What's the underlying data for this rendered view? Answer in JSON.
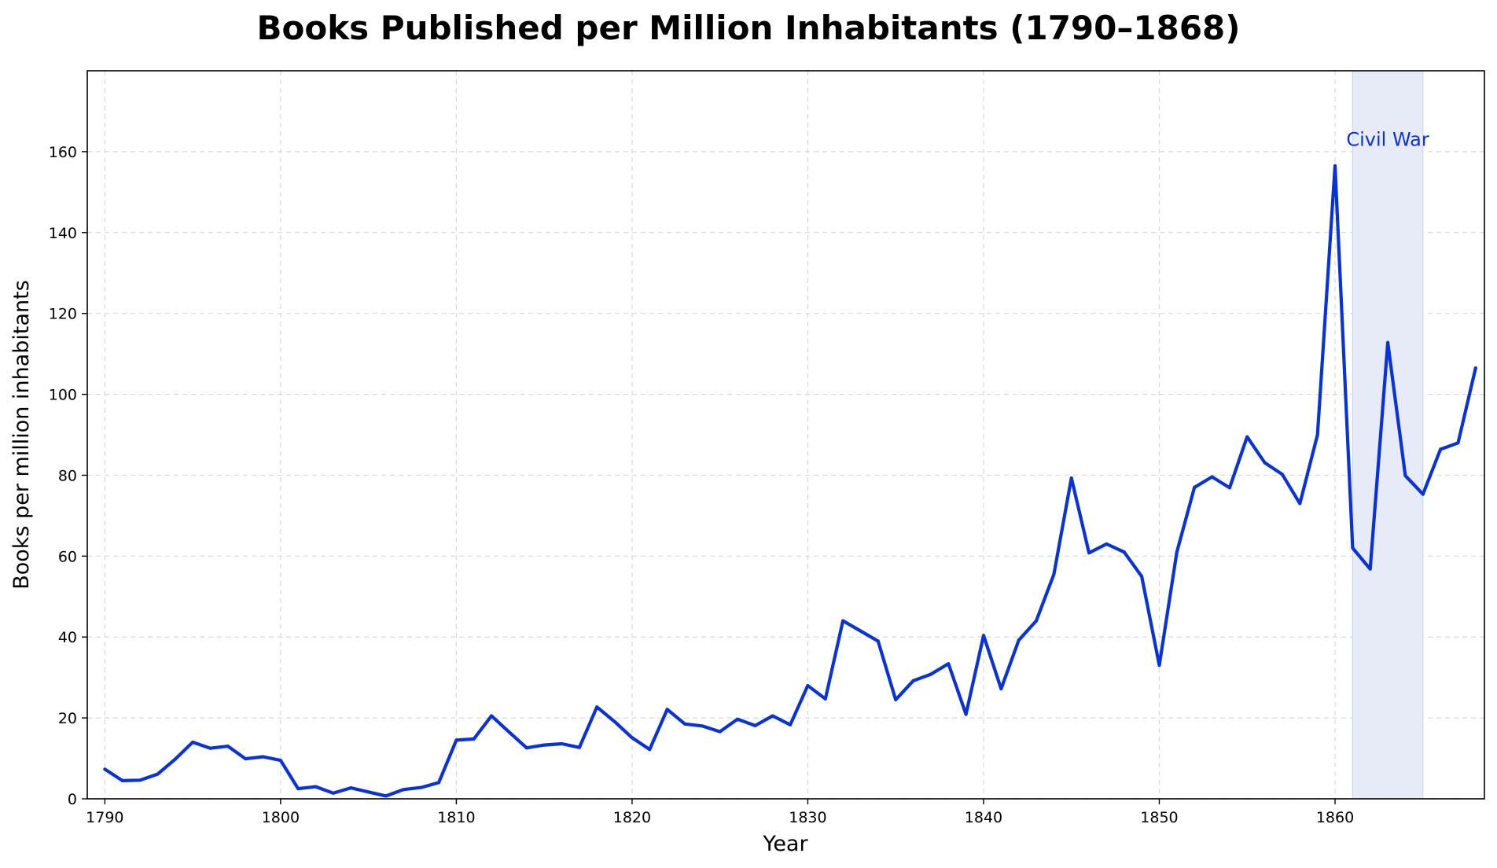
{
  "chart_data": {
    "type": "line",
    "title": "Books Published per Million Inhabitants (1790–1868)",
    "xlabel": "Year",
    "ylabel": "Books per million inhabitants",
    "xlim": [
      1789,
      1868.5
    ],
    "ylim": [
      0,
      180
    ],
    "xticks": [
      1790,
      1800,
      1810,
      1820,
      1830,
      1840,
      1850,
      1860
    ],
    "yticks": [
      0,
      20,
      40,
      60,
      80,
      100,
      120,
      140,
      160
    ],
    "grid": true,
    "line_color": "#0a32d9",
    "shade_color": "#e6ebf7",
    "annotation": {
      "text": "Civil War",
      "x_start": 1861,
      "x_end": 1865,
      "label_y": 163
    },
    "series": [
      {
        "x": [
          1790,
          1791,
          1792,
          1793,
          1794,
          1795,
          1796,
          1797,
          1798,
          1799,
          1800,
          1801,
          1802,
          1803,
          1804,
          1805,
          1806,
          1807,
          1808,
          1809,
          1810,
          1811,
          1812,
          1813,
          1814,
          1815,
          1816,
          1817,
          1818,
          1819,
          1820,
          1821,
          1822,
          1823,
          1824,
          1825,
          1826,
          1827,
          1828,
          1829,
          1830,
          1831,
          1832,
          1833,
          1834,
          1835,
          1836,
          1837,
          1838,
          1839,
          1840,
          1841,
          1842,
          1843,
          1844,
          1845,
          1846,
          1847,
          1848,
          1849,
          1850,
          1851,
          1852,
          1853,
          1854,
          1855,
          1856,
          1857,
          1858,
          1859,
          1860,
          1861,
          1862,
          1863,
          1864,
          1865,
          1866,
          1867,
          1868
        ],
        "values": [
          7.3,
          4.5,
          4.6,
          6.1,
          9.8,
          14,
          12.5,
          13,
          9.9,
          10.4,
          9.5,
          2.5,
          3,
          1.4,
          2.7,
          1.7,
          0.7,
          2.3,
          2.8,
          4,
          14.5,
          14.8,
          20.5,
          16.5,
          12.6,
          13.3,
          13.6,
          12.7,
          22.7,
          19.1,
          15.1,
          12.2,
          22.1,
          18.5,
          18,
          16.6,
          19.7,
          18.1,
          20.5,
          18.3,
          28,
          24.7,
          44,
          41.5,
          39,
          24.5,
          29.2,
          30.8,
          33.4,
          20.9,
          40.4,
          27.2,
          39.2,
          44,
          55.5,
          79.3,
          60.8,
          63,
          61,
          55,
          33,
          61,
          77,
          79.6,
          76.9,
          89.5,
          83.1,
          80.2,
          73,
          90,
          156.5,
          62,
          56.8,
          112.8,
          79.9,
          75.3,
          86.4,
          88,
          106.5
        ]
      }
    ]
  }
}
